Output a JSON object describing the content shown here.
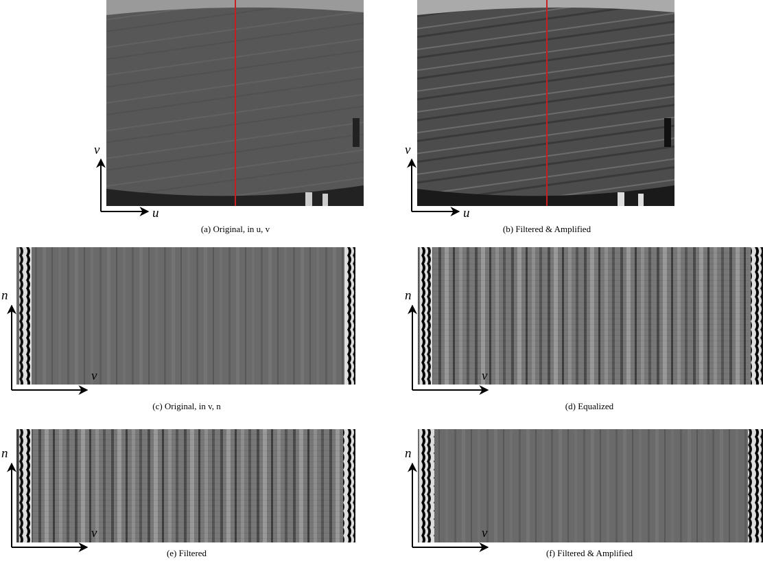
{
  "panels": [
    {
      "caption": "(a) Original, in u, v",
      "x_axis": "u",
      "y_axis": "v"
    },
    {
      "caption": "(b) Filtered & Amplified",
      "x_axis": "u",
      "y_axis": "v"
    },
    {
      "caption": "(c) Original, in v, n",
      "x_axis": "v",
      "y_axis": "n"
    },
    {
      "caption": "(d) Equalized",
      "x_axis": "v",
      "y_axis": "n"
    },
    {
      "caption": "(e) Filtered",
      "x_axis": "v",
      "y_axis": "n"
    },
    {
      "caption": "(f) Filtered & Amplified",
      "x_axis": "v",
      "y_axis": "n"
    }
  ]
}
